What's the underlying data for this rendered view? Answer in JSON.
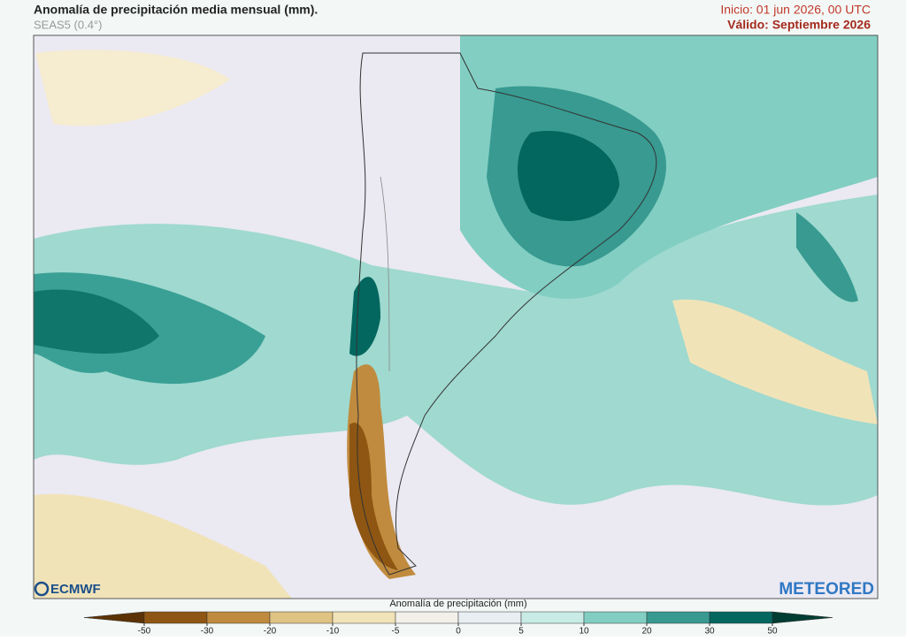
{
  "header": {
    "title": "Anomalía de precipitación media mensual (mm).",
    "subtitle": "SEAS5 (0.4°)",
    "init": "Inicio: 01 jun 2026, 00 UTC",
    "valid": "Válido: Septiembre 2026"
  },
  "logos": {
    "left": "ECMWF",
    "right": "METEORED"
  },
  "colorbar": {
    "title": "Anomalía de precipitación (mm)",
    "ticks": [
      -50,
      -30,
      -20,
      -10,
      -5,
      0,
      5,
      10,
      20,
      30,
      50
    ],
    "colors": [
      "#5c3306",
      "#8e5612",
      "#c08b3e",
      "#dfc383",
      "#f1e3b8",
      "#f3f0ea",
      "#e9eef3",
      "#c8ebe5",
      "#82cec2",
      "#389a91",
      "#03675f",
      "#013d33"
    ]
  }
}
